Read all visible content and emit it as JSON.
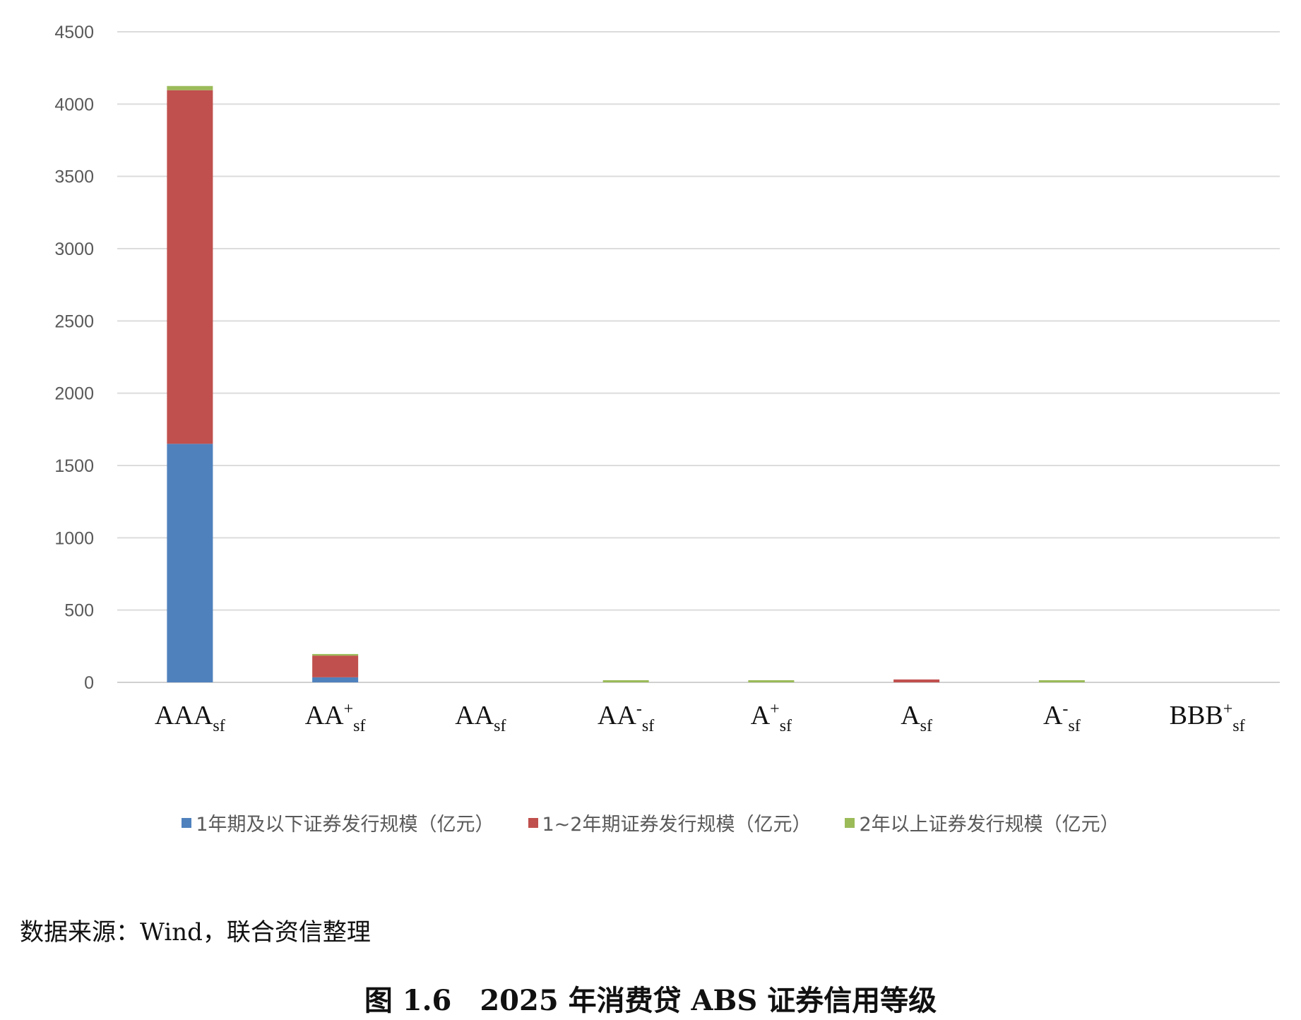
{
  "chart_data": {
    "type": "bar",
    "stacked": true,
    "categories": [
      {
        "base": "AAA",
        "sup": "",
        "sub": "sf"
      },
      {
        "base": "AA",
        "sup": "+",
        "sub": "sf"
      },
      {
        "base": "AA",
        "sup": "",
        "sub": "sf"
      },
      {
        "base": "AA",
        "sup": "-",
        "sub": "sf"
      },
      {
        "base": "A",
        "sup": "+",
        "sub": "sf"
      },
      {
        "base": "A",
        "sup": "",
        "sub": "sf"
      },
      {
        "base": "A",
        "sup": "-",
        "sub": "sf"
      },
      {
        "base": "BBB",
        "sup": "+",
        "sub": "sf"
      }
    ],
    "series": [
      {
        "name": "1年期及以下证券发行规模（亿元）",
        "color": "#4f81bd",
        "values": [
          1650,
          35,
          0,
          0,
          0,
          0,
          0,
          0
        ]
      },
      {
        "name": "1~2年期证券发行规模（亿元）",
        "color": "#c0504d",
        "values": [
          2446,
          150,
          0,
          0,
          0,
          20,
          0,
          0
        ]
      },
      {
        "name": "2年以上证券发行规模（亿元）",
        "color": "#9bbb59",
        "values": [
          29,
          11,
          0,
          15,
          15,
          0,
          15,
          0
        ]
      }
    ],
    "ylim": [
      0,
      4500
    ],
    "yticks": [
      0,
      500,
      1000,
      1500,
      2000,
      2500,
      3000,
      3500,
      4000,
      4500
    ],
    "grid": true,
    "legend": "bottom"
  },
  "source": "数据来源：Wind，联合资信整理",
  "caption": "图 1.6　2025 年消费贷 ABS 证券信用等级"
}
